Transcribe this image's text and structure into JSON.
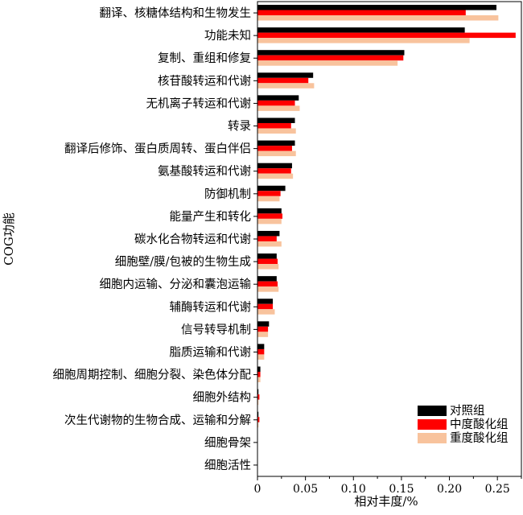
{
  "chart_data": {
    "type": "bar",
    "orientation": "horizontal",
    "title": "",
    "xlabel": "相对丰度/%",
    "ylabel": "COG功能",
    "xlim": [
      0,
      0.275
    ],
    "xticks": [
      0,
      0.05,
      0.1,
      0.15,
      0.2,
      0.25
    ],
    "xtick_labels": [
      "0",
      "0.05",
      "0.10",
      "0.15",
      "0.20",
      "0.25"
    ],
    "grid": false,
    "legend_position": "bottom-right",
    "categories": [
      "翻译、核糖体结构和生物发生",
      "功能未知",
      "复制、重组和修复",
      "核苷酸转运和代谢",
      "无机离子转运和代谢",
      "转录",
      "翻译后修饰、蛋白质周转、蛋白伴侣",
      "氨基酸转运和代谢",
      "防御机制",
      "能量产生和转化",
      "碳水化合物转运和代谢",
      "细胞壁/膜/包被的生物生成",
      "细胞内运输、分泌和囊泡运输",
      "辅酶转运和代谢",
      "信号转导机制",
      "脂质运输和代谢",
      "细胞周期控制、细胞分裂、染色体分配",
      "细胞外结构",
      "次生代谢物的生物合成、运输和分解",
      "细胞骨架",
      "细胞活性"
    ],
    "series": [
      {
        "name": "对照组",
        "color": "#000000",
        "values": [
          0.249,
          0.216,
          0.153,
          0.058,
          0.043,
          0.039,
          0.039,
          0.036,
          0.029,
          0.025,
          0.023,
          0.02,
          0.02,
          0.016,
          0.012,
          0.007,
          0.003,
          0.001,
          0.001,
          0.0003,
          0.0002
        ]
      },
      {
        "name": "中度酸化组",
        "color": "#ff0000",
        "values": [
          0.217,
          0.269,
          0.152,
          0.053,
          0.039,
          0.035,
          0.036,
          0.035,
          0.024,
          0.026,
          0.02,
          0.021,
          0.021,
          0.016,
          0.011,
          0.007,
          0.003,
          0.002,
          0.002,
          0.0003,
          0.0002
        ]
      },
      {
        "name": "重度酸化组",
        "color": "#f8c39d",
        "values": [
          0.251,
          0.221,
          0.146,
          0.059,
          0.044,
          0.04,
          0.04,
          0.037,
          0.023,
          0.025,
          0.025,
          0.022,
          0.022,
          0.018,
          0.011,
          0.007,
          0.003,
          0.001,
          0.001,
          0.0003,
          0.0002
        ]
      }
    ]
  }
}
